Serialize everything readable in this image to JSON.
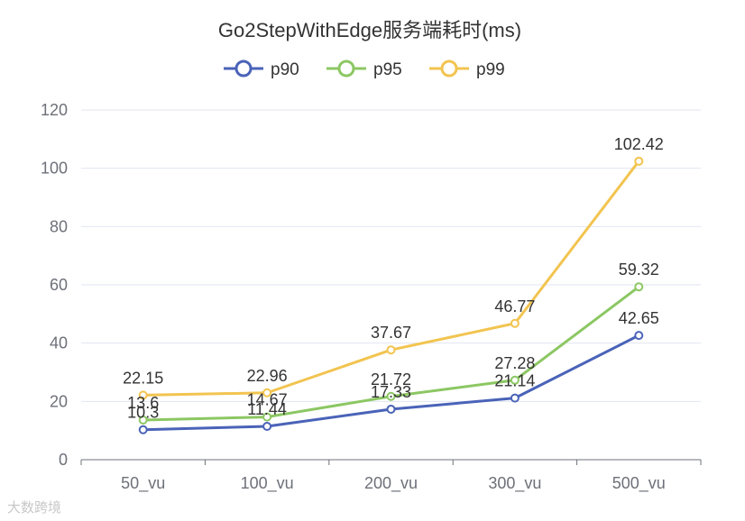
{
  "chart_data": {
    "type": "line",
    "title": "Go2StepWithEdge服务端耗时(ms)",
    "categories": [
      "50_vu",
      "100_vu",
      "200_vu",
      "300_vu",
      "500_vu"
    ],
    "series": [
      {
        "name": "p90",
        "color": "#4a63b8",
        "values": [
          10.3,
          11.44,
          17.33,
          21.14,
          42.65
        ],
        "labels": [
          "10.3",
          "11.44",
          "17.33",
          "21.14",
          "42.65"
        ]
      },
      {
        "name": "p95",
        "color": "#8cc763",
        "values": [
          13.6,
          14.67,
          21.72,
          27.28,
          59.32
        ],
        "labels": [
          "13.6",
          "14.67",
          "21.72",
          "27.28",
          "59.32"
        ]
      },
      {
        "name": "p99",
        "color": "#f2c450",
        "values": [
          22.15,
          22.96,
          37.67,
          46.77,
          102.42
        ],
        "labels": [
          "22.15",
          "22.96",
          "37.67",
          "46.77",
          "102.42"
        ]
      }
    ],
    "ylim": [
      0,
      120
    ],
    "yticks": [
      "0",
      "20",
      "40",
      "60",
      "80",
      "100",
      "120"
    ],
    "grid": true,
    "legend": "top-center"
  },
  "watermark": "大数跨境"
}
